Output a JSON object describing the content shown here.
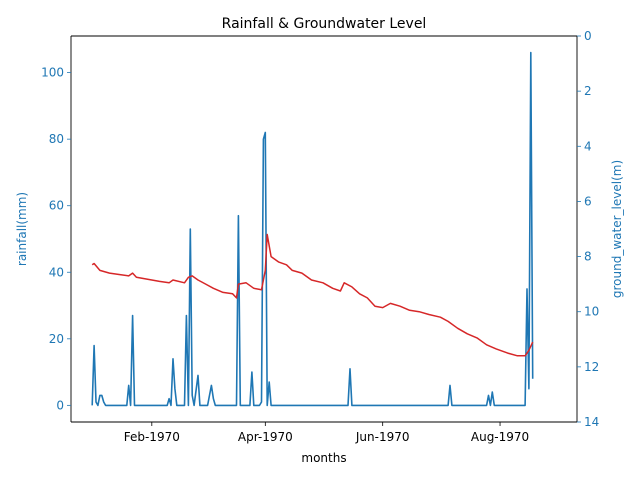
{
  "chart_data": {
    "type": "line",
    "title": "Rainfall & Groundwater Level",
    "xlabel": "months",
    "ylabel_left": "rainfall(mm)",
    "ylabel_right": "ground_water_level(m)",
    "x_tick_labels": [
      "Feb-1970",
      "Apr-1970",
      "Jun-1970",
      "Aug-1970"
    ],
    "x_tick_dates": [
      "1970-02-01",
      "1970-04-01",
      "1970-06-01",
      "1970-08-01"
    ],
    "x_range": [
      "1969-12-21",
      "1970-09-10"
    ],
    "y_left_ticks": [
      "0",
      "20",
      "40",
      "60",
      "80",
      "100"
    ],
    "y_left_range": [
      -5,
      111
    ],
    "y_right_ticks": [
      "0",
      "2",
      "4",
      "6",
      "8",
      "10",
      "12",
      "14"
    ],
    "y_right_range": [
      14,
      0
    ],
    "y_right_inverted": true,
    "grid": false,
    "colors": {
      "rainfall": "#1f77b4",
      "ground_water_level": "#d62728",
      "axis_labels": "#1f77b4"
    },
    "series": [
      {
        "axis": "left",
        "color": "#1f77b4",
        "points": [
          [
            "1970-01-01",
            0
          ],
          [
            "1970-01-02",
            18
          ],
          [
            "1970-01-03",
            1
          ],
          [
            "1970-01-04",
            0
          ],
          [
            "1970-01-05",
            3
          ],
          [
            "1970-01-06",
            3
          ],
          [
            "1970-01-07",
            1
          ],
          [
            "1970-01-08",
            0
          ],
          [
            "1970-01-19",
            0
          ],
          [
            "1970-01-20",
            6
          ],
          [
            "1970-01-21",
            0
          ],
          [
            "1970-01-22",
            27
          ],
          [
            "1970-01-23",
            0
          ],
          [
            "1970-02-09",
            0
          ],
          [
            "1970-02-10",
            2
          ],
          [
            "1970-02-11",
            0
          ],
          [
            "1970-02-12",
            14
          ],
          [
            "1970-02-13",
            5
          ],
          [
            "1970-02-14",
            0
          ],
          [
            "1970-02-18",
            0
          ],
          [
            "1970-02-19",
            27
          ],
          [
            "1970-02-20",
            0
          ],
          [
            "1970-02-21",
            53
          ],
          [
            "1970-02-22",
            3
          ],
          [
            "1970-02-23",
            0
          ],
          [
            "1970-02-25",
            9
          ],
          [
            "1970-02-26",
            0
          ],
          [
            "1970-03-02",
            0
          ],
          [
            "1970-03-04",
            6
          ],
          [
            "1970-03-05",
            2
          ],
          [
            "1970-03-06",
            0
          ],
          [
            "1970-03-17",
            0
          ],
          [
            "1970-03-18",
            57
          ],
          [
            "1970-03-19",
            0
          ],
          [
            "1970-03-24",
            0
          ],
          [
            "1970-03-25",
            10
          ],
          [
            "1970-03-26",
            0
          ],
          [
            "1970-03-29",
            0
          ],
          [
            "1970-03-30",
            1
          ],
          [
            "1970-03-31",
            80
          ],
          [
            "1970-04-01",
            82
          ],
          [
            "1970-04-02",
            0
          ],
          [
            "1970-04-03",
            7
          ],
          [
            "1970-04-04",
            0
          ],
          [
            "1970-05-14",
            0
          ],
          [
            "1970-05-15",
            11
          ],
          [
            "1970-05-16",
            0
          ],
          [
            "1970-07-05",
            0
          ],
          [
            "1970-07-06",
            6
          ],
          [
            "1970-07-07",
            0
          ],
          [
            "1970-07-25",
            0
          ],
          [
            "1970-07-26",
            3
          ],
          [
            "1970-07-27",
            0
          ],
          [
            "1970-07-28",
            4
          ],
          [
            "1970-07-29",
            0
          ],
          [
            "1970-08-14",
            0
          ],
          [
            "1970-08-15",
            35
          ],
          [
            "1970-08-16",
            5
          ],
          [
            "1970-08-17",
            106
          ],
          [
            "1970-08-18",
            8
          ]
        ]
      },
      {
        "axis": "right",
        "color": "#d62728",
        "points": [
          [
            "1970-01-01",
            8.3
          ],
          [
            "1970-01-02",
            8.25
          ],
          [
            "1970-01-05",
            8.5
          ],
          [
            "1970-01-10",
            8.6
          ],
          [
            "1970-01-15",
            8.65
          ],
          [
            "1970-01-20",
            8.7
          ],
          [
            "1970-01-22",
            8.6
          ],
          [
            "1970-01-24",
            8.75
          ],
          [
            "1970-02-01",
            8.85
          ],
          [
            "1970-02-05",
            8.9
          ],
          [
            "1970-02-10",
            8.95
          ],
          [
            "1970-02-12",
            8.85
          ],
          [
            "1970-02-18",
            8.95
          ],
          [
            "1970-02-20",
            8.75
          ],
          [
            "1970-02-22",
            8.7
          ],
          [
            "1970-02-25",
            8.85
          ],
          [
            "1970-03-01",
            9.0
          ],
          [
            "1970-03-05",
            9.15
          ],
          [
            "1970-03-10",
            9.3
          ],
          [
            "1970-03-15",
            9.35
          ],
          [
            "1970-03-17",
            9.5
          ],
          [
            "1970-03-18",
            9.0
          ],
          [
            "1970-03-22",
            8.95
          ],
          [
            "1970-03-26",
            9.15
          ],
          [
            "1970-03-30",
            9.2
          ],
          [
            "1970-04-01",
            8.5
          ],
          [
            "1970-04-02",
            7.2
          ],
          [
            "1970-04-04",
            8.0
          ],
          [
            "1970-04-08",
            8.2
          ],
          [
            "1970-04-12",
            8.3
          ],
          [
            "1970-04-15",
            8.5
          ],
          [
            "1970-04-20",
            8.6
          ],
          [
            "1970-04-25",
            8.85
          ],
          [
            "1970-05-01",
            8.95
          ],
          [
            "1970-05-06",
            9.15
          ],
          [
            "1970-05-10",
            9.25
          ],
          [
            "1970-05-12",
            8.95
          ],
          [
            "1970-05-16",
            9.1
          ],
          [
            "1970-05-20",
            9.35
          ],
          [
            "1970-05-24",
            9.5
          ],
          [
            "1970-05-28",
            9.8
          ],
          [
            "1970-06-01",
            9.85
          ],
          [
            "1970-06-05",
            9.7
          ],
          [
            "1970-06-10",
            9.8
          ],
          [
            "1970-06-15",
            9.95
          ],
          [
            "1970-06-20",
            10.0
          ],
          [
            "1970-06-25",
            10.1
          ],
          [
            "1970-07-01",
            10.2
          ],
          [
            "1970-07-05",
            10.35
          ],
          [
            "1970-07-10",
            10.6
          ],
          [
            "1970-07-15",
            10.8
          ],
          [
            "1970-07-20",
            10.95
          ],
          [
            "1970-07-25",
            11.2
          ],
          [
            "1970-07-30",
            11.35
          ],
          [
            "1970-08-05",
            11.5
          ],
          [
            "1970-08-10",
            11.6
          ],
          [
            "1970-08-14",
            11.6
          ],
          [
            "1970-08-16",
            11.4
          ],
          [
            "1970-08-18",
            11.1
          ]
        ]
      }
    ]
  }
}
